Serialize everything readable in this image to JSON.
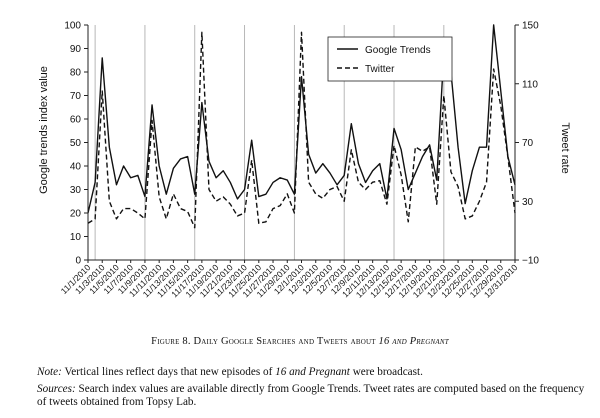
{
  "figure": {
    "caption_prefix": "Figure 8. Daily Google Searches and Tweets about",
    "caption_title": "16 and Pregnant",
    "note_label": "Note:",
    "note_text_1": "Vertical lines reflect days that new episodes of",
    "note_title": "16 and Pregnant",
    "note_text_2": "were broadcast.",
    "sources_label": "Sources:",
    "sources_text": "Search index values are available directly from Google Trends. Tweet rates are computed based on the frequency of tweets obtained from Topsy Lab."
  },
  "colors": {
    "line": "#111111",
    "episode_line": "#b0b0b0",
    "axis": "#222222"
  },
  "chart_data": {
    "type": "line",
    "title": "",
    "xlabel": "",
    "ylabel": "Google trends index value",
    "y2label": "Tweet rate",
    "ylim": [
      0,
      100
    ],
    "y2lim": [
      -10,
      150
    ],
    "yticks": [
      0,
      10,
      20,
      30,
      40,
      50,
      60,
      70,
      80,
      90,
      100
    ],
    "y2ticks": [
      -10,
      30,
      70,
      110,
      150
    ],
    "x_tick_labels": [
      "11/1/2010",
      "11/3/2010",
      "11/5/2010",
      "11/7/2010",
      "11/9/2010",
      "11/11/2010",
      "11/13/2010",
      "11/15/2010",
      "11/17/2010",
      "11/19/2010",
      "11/21/2010",
      "11/23/2010",
      "11/25/2010",
      "11/27/2010",
      "11/29/2010",
      "12/1/2010",
      "12/3/2010",
      "12/5/2010",
      "12/7/2010",
      "12/9/2010",
      "12/11/2010",
      "12/13/2010",
      "12/15/2010",
      "12/17/2010",
      "12/19/2010",
      "12/21/2010",
      "12/23/2010",
      "12/25/2010",
      "12/27/2010",
      "12/29/2010",
      "12/31/2010"
    ],
    "episode_days": [
      1,
      8,
      15,
      22,
      29,
      36,
      43,
      50
    ],
    "legend_position": "top-right",
    "series": [
      {
        "name": "Google Trends",
        "axis": "left",
        "style": "solid",
        "values": [
          20,
          33,
          86,
          48,
          32,
          40,
          35,
          36,
          27,
          66,
          40,
          28,
          39,
          43,
          44,
          28,
          67,
          42,
          35,
          38,
          33,
          26,
          30,
          51,
          27,
          28,
          33,
          35,
          34,
          28,
          78,
          45,
          37,
          41,
          37,
          32,
          36,
          58,
          41,
          33,
          38,
          41,
          26,
          56,
          47,
          30,
          37,
          44,
          49,
          34,
          88,
          80,
          48,
          24,
          38,
          48,
          48,
          100,
          72,
          44,
          32
        ]
      },
      {
        "name": "Twitter",
        "axis": "right",
        "style": "dashed",
        "values": [
          15,
          18,
          105,
          30,
          18,
          25,
          25,
          22,
          18,
          85,
          33,
          18,
          35,
          25,
          23,
          12,
          145,
          38,
          30,
          33,
          28,
          20,
          22,
          58,
          15,
          16,
          25,
          27,
          35,
          22,
          145,
          43,
          35,
          32,
          38,
          40,
          30,
          65,
          43,
          38,
          43,
          44,
          28,
          68,
          48,
          16,
          67,
          64,
          67,
          28,
          102,
          50,
          40,
          18,
          20,
          30,
          43,
          120,
          95,
          60,
          22
        ]
      }
    ]
  }
}
